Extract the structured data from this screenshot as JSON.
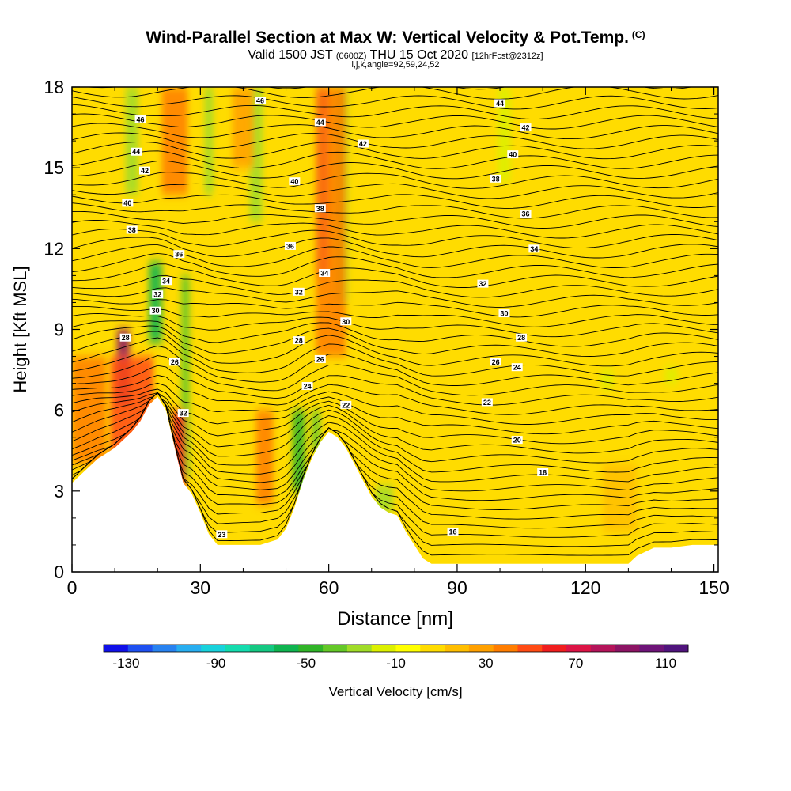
{
  "title": {
    "main": "Wind-Parallel Section at Max W: Vertical Velocity & Pot.Temp.",
    "copyright": "(C)",
    "valid_prefix": "Valid 1500 JST",
    "valid_utc": "(0600Z)",
    "valid_date": "THU 15 Oct 2020",
    "forecast": "[12hrFcst@2312z]",
    "indices": "i,j,k,angle=92,59,24,52"
  },
  "chart_data": {
    "type": "heatmap",
    "xlabel": "Distance [nm]",
    "ylabel": "Height [Kft MSL]",
    "xlim": [
      0,
      151
    ],
    "ylim": [
      0,
      18
    ],
    "x_ticks": [
      0,
      30,
      60,
      90,
      120,
      150
    ],
    "y_ticks": [
      0,
      3,
      6,
      9,
      12,
      15,
      18
    ],
    "colorbar": {
      "label": "Vertical Velocity [cm/s]",
      "tick_labels": [
        -130,
        -90,
        -50,
        -10,
        30,
        70,
        110
      ],
      "range": [
        -140,
        120
      ],
      "colors": [
        "#1010e8",
        "#1e50f0",
        "#2882f0",
        "#28aef0",
        "#18d2dc",
        "#14dcae",
        "#14c882",
        "#0fb450",
        "#30b428",
        "#64c828",
        "#a0dc28",
        "#dcf000",
        "#ffff00",
        "#ffdc00",
        "#ffbe00",
        "#ffa000",
        "#ff7d00",
        "#ff4b14",
        "#f01e1e",
        "#dc1446",
        "#b4145a",
        "#8c1464",
        "#6e1478",
        "#50147d"
      ]
    },
    "terrain_profile": {
      "note": "terrain height (Kft) vs distance (nm)",
      "x": [
        0,
        2,
        4,
        6,
        8,
        10,
        12,
        14,
        16,
        18,
        20,
        22,
        24,
        26,
        28,
        30,
        32,
        34,
        36,
        40,
        44,
        48,
        50,
        52,
        54,
        56,
        58,
        60,
        62,
        64,
        66,
        68,
        70,
        72,
        74,
        76,
        78,
        80,
        82,
        84,
        86,
        90,
        100,
        110,
        120,
        130,
        132,
        136,
        140,
        145,
        151
      ],
      "height": [
        3.3,
        3.6,
        3.9,
        4.2,
        4.4,
        4.6,
        4.9,
        5.2,
        5.6,
        6.2,
        6.5,
        6.0,
        4.6,
        3.3,
        2.9,
        2.2,
        1.4,
        1.0,
        1.0,
        1.0,
        1.0,
        1.2,
        1.6,
        2.4,
        3.4,
        4.2,
        4.8,
        5.2,
        5.0,
        4.6,
        4.0,
        3.4,
        2.8,
        2.4,
        2.2,
        2.1,
        1.5,
        1.0,
        0.5,
        0.3,
        0.3,
        0.3,
        0.3,
        0.3,
        0.3,
        0.3,
        0.6,
        0.9,
        0.9,
        1.0,
        1.0
      ]
    },
    "contour_labels": [
      {
        "text": "46",
        "x": 16,
        "y": 16.8
      },
      {
        "text": "44",
        "x": 15,
        "y": 15.6
      },
      {
        "text": "42",
        "x": 17,
        "y": 14.9
      },
      {
        "text": "40",
        "x": 13,
        "y": 13.7
      },
      {
        "text": "38",
        "x": 14,
        "y": 12.7
      },
      {
        "text": "36",
        "x": 25,
        "y": 11.8
      },
      {
        "text": "34",
        "x": 22,
        "y": 10.8
      },
      {
        "text": "32",
        "x": 20,
        "y": 10.3
      },
      {
        "text": "30",
        "x": 19.5,
        "y": 9.7
      },
      {
        "text": "28",
        "x": 12.5,
        "y": 8.7
      },
      {
        "text": "26",
        "x": 24,
        "y": 7.8
      },
      {
        "text": "32",
        "x": 26,
        "y": 5.9
      },
      {
        "text": "23",
        "x": 35,
        "y": 1.4
      },
      {
        "text": "46",
        "x": 44,
        "y": 17.5
      },
      {
        "text": "44",
        "x": 58,
        "y": 16.7
      },
      {
        "text": "42",
        "x": 68,
        "y": 15.9
      },
      {
        "text": "40",
        "x": 52,
        "y": 14.5
      },
      {
        "text": "38",
        "x": 58,
        "y": 13.5
      },
      {
        "text": "36",
        "x": 51,
        "y": 12.1
      },
      {
        "text": "34",
        "x": 59,
        "y": 11.1
      },
      {
        "text": "32",
        "x": 53,
        "y": 10.4
      },
      {
        "text": "30",
        "x": 64,
        "y": 9.3
      },
      {
        "text": "28",
        "x": 53,
        "y": 8.6
      },
      {
        "text": "26",
        "x": 58,
        "y": 7.9
      },
      {
        "text": "24",
        "x": 55,
        "y": 6.9
      },
      {
        "text": "22",
        "x": 64,
        "y": 6.2
      },
      {
        "text": "44",
        "x": 100,
        "y": 17.4
      },
      {
        "text": "42",
        "x": 106,
        "y": 16.5
      },
      {
        "text": "40",
        "x": 103,
        "y": 15.5
      },
      {
        "text": "38",
        "x": 99,
        "y": 14.6
      },
      {
        "text": "36",
        "x": 106,
        "y": 13.3
      },
      {
        "text": "34",
        "x": 108,
        "y": 12.0
      },
      {
        "text": "32",
        "x": 96,
        "y": 10.7
      },
      {
        "text": "30",
        "x": 101,
        "y": 9.6
      },
      {
        "text": "28",
        "x": 105,
        "y": 8.7
      },
      {
        "text": "26",
        "x": 99,
        "y": 7.8
      },
      {
        "text": "24",
        "x": 104,
        "y": 7.6
      },
      {
        "text": "22",
        "x": 97,
        "y": 6.3
      },
      {
        "text": "20",
        "x": 104,
        "y": 4.9
      },
      {
        "text": "18",
        "x": 110,
        "y": 3.7
      },
      {
        "text": "16",
        "x": 89,
        "y": 1.5
      }
    ],
    "updraft_bands": [
      {
        "x": 12,
        "width": 3,
        "y_bottom": 6.2,
        "y_top": 9.0,
        "value": 90
      },
      {
        "x": 14,
        "width": 10,
        "y_bottom": 3.5,
        "y_top": 8.0,
        "value": 50
      },
      {
        "x": 4,
        "width": 8,
        "y_bottom": 4.0,
        "y_top": 8.0,
        "value": 35
      },
      {
        "x": 58.5,
        "width": 3,
        "y_bottom": 11.0,
        "y_top": 18.0,
        "value": 75
      },
      {
        "x": 60.5,
        "width": 7,
        "y_bottom": 8.0,
        "y_top": 18.0,
        "value": 40
      },
      {
        "x": 24,
        "width": 6,
        "y_bottom": 14.0,
        "y_top": 18.0,
        "value": 40
      },
      {
        "x": 25,
        "width": 3,
        "y_bottom": 3.0,
        "y_top": 6.0,
        "value": 60
      },
      {
        "x": 45,
        "width": 4,
        "y_bottom": 2.5,
        "y_top": 6.0,
        "value": 35
      },
      {
        "x": 40,
        "width": 5,
        "y_bottom": 15.0,
        "y_top": 18.0,
        "value": 30
      },
      {
        "x": 128,
        "width": 8,
        "y_bottom": 1.5,
        "y_top": 4.0,
        "value": 20
      }
    ],
    "downdraft_bands": [
      {
        "x": 14,
        "width": 3,
        "y_bottom": 14.0,
        "y_top": 18.0,
        "value": -30
      },
      {
        "x": 19.5,
        "width": 3,
        "y_bottom": 8.5,
        "y_top": 11.5,
        "value": -55
      },
      {
        "x": 26.5,
        "width": 2,
        "y_bottom": 3.5,
        "y_top": 11.0,
        "value": -40
      },
      {
        "x": 32,
        "width": 2,
        "y_bottom": 14.0,
        "y_top": 18.0,
        "value": -25
      },
      {
        "x": 43,
        "width": 3,
        "y_bottom": 13.0,
        "y_top": 18.0,
        "value": -30
      },
      {
        "x": 53,
        "width": 3,
        "y_bottom": 3.0,
        "y_top": 6.0,
        "value": -45
      },
      {
        "x": 57,
        "width": 2,
        "y_bottom": 4.5,
        "y_top": 6.0,
        "value": -40
      },
      {
        "x": 63,
        "width": 3,
        "y_bottom": 10.0,
        "y_top": 18.0,
        "value": -30
      },
      {
        "x": 73,
        "width": 4,
        "y_bottom": 2.2,
        "y_top": 3.2,
        "value": -25
      },
      {
        "x": 101,
        "width": 3,
        "y_bottom": 14.5,
        "y_top": 18.0,
        "value": -20
      },
      {
        "x": 125,
        "width": 3,
        "y_bottom": 6.8,
        "y_top": 7.5,
        "value": -15
      },
      {
        "x": 140,
        "width": 3,
        "y_bottom": 7.0,
        "y_top": 7.6,
        "value": -15
      }
    ]
  }
}
